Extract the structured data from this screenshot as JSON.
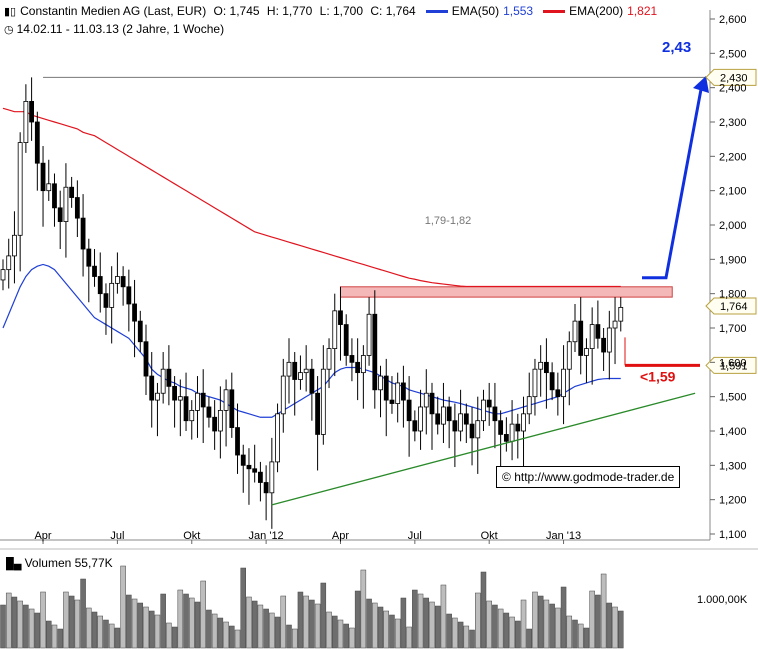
{
  "header": {
    "icon": "candlestick-icon",
    "title": "Constantin Medien AG (Last, EUR)",
    "open": "O: 1,745",
    "high": "H: 1,770",
    "low": "L: 1,700",
    "close": "C: 1,764",
    "ema50_label": "EMA(50)",
    "ema50_value": "1,553",
    "ema200_label": "EMA(200)",
    "ema200_value": "1,821",
    "clock_icon": "clock-icon",
    "period": "14.02.11 - 11.03.13 (2 Jahre, 1 Woche)"
  },
  "colors": {
    "ema50": "#1f3fd6",
    "ema200": "#e0141e",
    "trend": "#2a8a2a",
    "target": "#1030e0",
    "stop": "#e01010",
    "zone": "#f4b8b8"
  },
  "volume_label": "Volumen 55,77K",
  "volume_icon": "bar-icon",
  "copyright": "http://www.godmode-trader.de",
  "chart_data": {
    "type": "candlestick",
    "ylim": [
      1.1,
      2.62
    ],
    "y_ticks": [
      "2,600",
      "2,500",
      "2,400",
      "2,300",
      "2,200",
      "2,100",
      "2,000",
      "1,900",
      "1,800",
      "1,700",
      "1,600",
      "1,500",
      "1,400",
      "1,300",
      "1,200",
      "1,100"
    ],
    "y_tick_values": [
      2.6,
      2.5,
      2.4,
      2.3,
      2.2,
      2.1,
      2.0,
      1.9,
      1.8,
      1.7,
      1.6,
      1.5,
      1.4,
      1.3,
      1.2,
      1.1
    ],
    "x_ticks": [
      "Apr",
      "Jul",
      "Okt",
      "Jan '12",
      "Apr",
      "Jul",
      "Okt",
      "Jan '13"
    ],
    "x_tick_weeks": [
      7,
      20,
      33,
      46,
      59,
      72,
      85,
      98
    ],
    "weeks": 109,
    "closes": [
      1.87,
      1.91,
      1.97,
      2.24,
      2.36,
      2.3,
      2.18,
      2.1,
      2.12,
      2.05,
      2.01,
      2.11,
      2.08,
      2.02,
      1.93,
      1.88,
      1.85,
      1.8,
      1.76,
      1.83,
      1.85,
      1.82,
      1.77,
      1.72,
      1.66,
      1.56,
      1.49,
      1.51,
      1.58,
      1.53,
      1.49,
      1.5,
      1.43,
      1.46,
      1.51,
      1.47,
      1.44,
      1.4,
      1.46,
      1.52,
      1.41,
      1.33,
      1.3,
      1.29,
      1.28,
      1.25,
      1.22,
      1.31,
      1.45,
      1.56,
      1.6,
      1.55,
      1.57,
      1.58,
      1.51,
      1.39,
      1.58,
      1.64,
      1.75,
      1.71,
      1.62,
      1.6,
      1.57,
      1.62,
      1.74,
      1.52,
      1.56,
      1.49,
      1.48,
      1.54,
      1.49,
      1.43,
      1.4,
      1.47,
      1.51,
      1.45,
      1.42,
      1.47,
      1.43,
      1.4,
      1.45,
      1.42,
      1.38,
      1.43,
      1.49,
      1.47,
      1.43,
      1.39,
      1.37,
      1.42,
      1.4,
      1.45,
      1.5,
      1.58,
      1.6,
      1.57,
      1.52,
      1.5,
      1.58,
      1.66,
      1.72,
      1.62,
      1.64,
      1.71,
      1.67,
      1.63,
      1.7,
      1.72,
      1.76
    ],
    "ema50": {
      "name": "EMA(50)",
      "values": [
        1.7,
        1.74,
        1.78,
        1.82,
        1.85,
        1.87,
        1.88,
        1.885,
        1.88,
        1.87,
        1.85,
        1.83,
        1.81,
        1.79,
        1.77,
        1.75,
        1.73,
        1.72,
        1.71,
        1.7,
        1.69,
        1.68,
        1.67,
        1.65,
        1.63,
        1.61,
        1.58,
        1.565,
        1.555,
        1.545,
        1.54,
        1.53,
        1.525,
        1.52,
        1.51,
        1.505,
        1.5,
        1.495,
        1.49,
        1.48,
        1.47,
        1.46,
        1.455,
        1.45,
        1.445,
        1.44,
        1.44,
        1.44,
        1.45,
        1.46,
        1.47,
        1.48,
        1.49,
        1.5,
        1.51,
        1.52,
        1.53,
        1.55,
        1.57,
        1.58,
        1.585,
        1.585,
        1.585,
        1.58,
        1.575,
        1.57,
        1.56,
        1.55,
        1.54,
        1.535,
        1.53,
        1.52,
        1.515,
        1.51,
        1.505,
        1.5,
        1.495,
        1.49,
        1.487,
        1.484,
        1.48,
        1.475,
        1.47,
        1.465,
        1.46,
        1.455,
        1.45,
        1.45,
        1.455,
        1.46,
        1.465,
        1.47,
        1.475,
        1.48,
        1.485,
        1.49,
        1.495,
        1.5,
        1.51,
        1.52,
        1.53,
        1.535,
        1.54,
        1.545,
        1.55,
        1.552,
        1.553,
        1.553,
        1.553
      ]
    },
    "ema200": {
      "name": "EMA(200)",
      "values": [
        2.34,
        2.335,
        2.33,
        2.33,
        2.33,
        2.32,
        2.315,
        2.31,
        2.305,
        2.3,
        2.295,
        2.29,
        2.285,
        2.28,
        2.27,
        2.265,
        2.26,
        2.25,
        2.24,
        2.23,
        2.22,
        2.21,
        2.2,
        2.19,
        2.18,
        2.17,
        2.16,
        2.15,
        2.14,
        2.13,
        2.12,
        2.11,
        2.1,
        2.09,
        2.08,
        2.07,
        2.06,
        2.05,
        2.04,
        2.03,
        2.02,
        2.01,
        2.0,
        1.99,
        1.98,
        1.975,
        1.97,
        1.965,
        1.96,
        1.955,
        1.95,
        1.945,
        1.94,
        1.935,
        1.93,
        1.925,
        1.92,
        1.915,
        1.91,
        1.905,
        1.9,
        1.895,
        1.89,
        1.885,
        1.88,
        1.875,
        1.87,
        1.865,
        1.86,
        1.855,
        1.85,
        1.845,
        1.842,
        1.838,
        1.835,
        1.832,
        1.83,
        1.828,
        1.826,
        1.824,
        1.822,
        1.821,
        1.821,
        1.821,
        1.821,
        1.821,
        1.821,
        1.821,
        1.821,
        1.821,
        1.821,
        1.821,
        1.821,
        1.821,
        1.821,
        1.821,
        1.821,
        1.821,
        1.821,
        1.821,
        1.821,
        1.821,
        1.821,
        1.821,
        1.821,
        1.821,
        1.821,
        1.821,
        1.821
      ]
    },
    "resistance_zone": {
      "label": "1,79-1,82",
      "low": 1.79,
      "high": 1.82,
      "from_week": 59,
      "to_week": 117
    },
    "high_line": {
      "value": 2.43,
      "label": "2,430",
      "target_label": "2,43"
    },
    "last_price": {
      "value": 1.764,
      "label": "1,764"
    },
    "stop": {
      "value": 1.591,
      "label": "1,591",
      "stop_label": "<1,59"
    },
    "trendline": {
      "from": [
        47,
        1.185
      ],
      "to": [
        121,
        1.51
      ]
    },
    "volume_tick": "1.000,00K"
  }
}
